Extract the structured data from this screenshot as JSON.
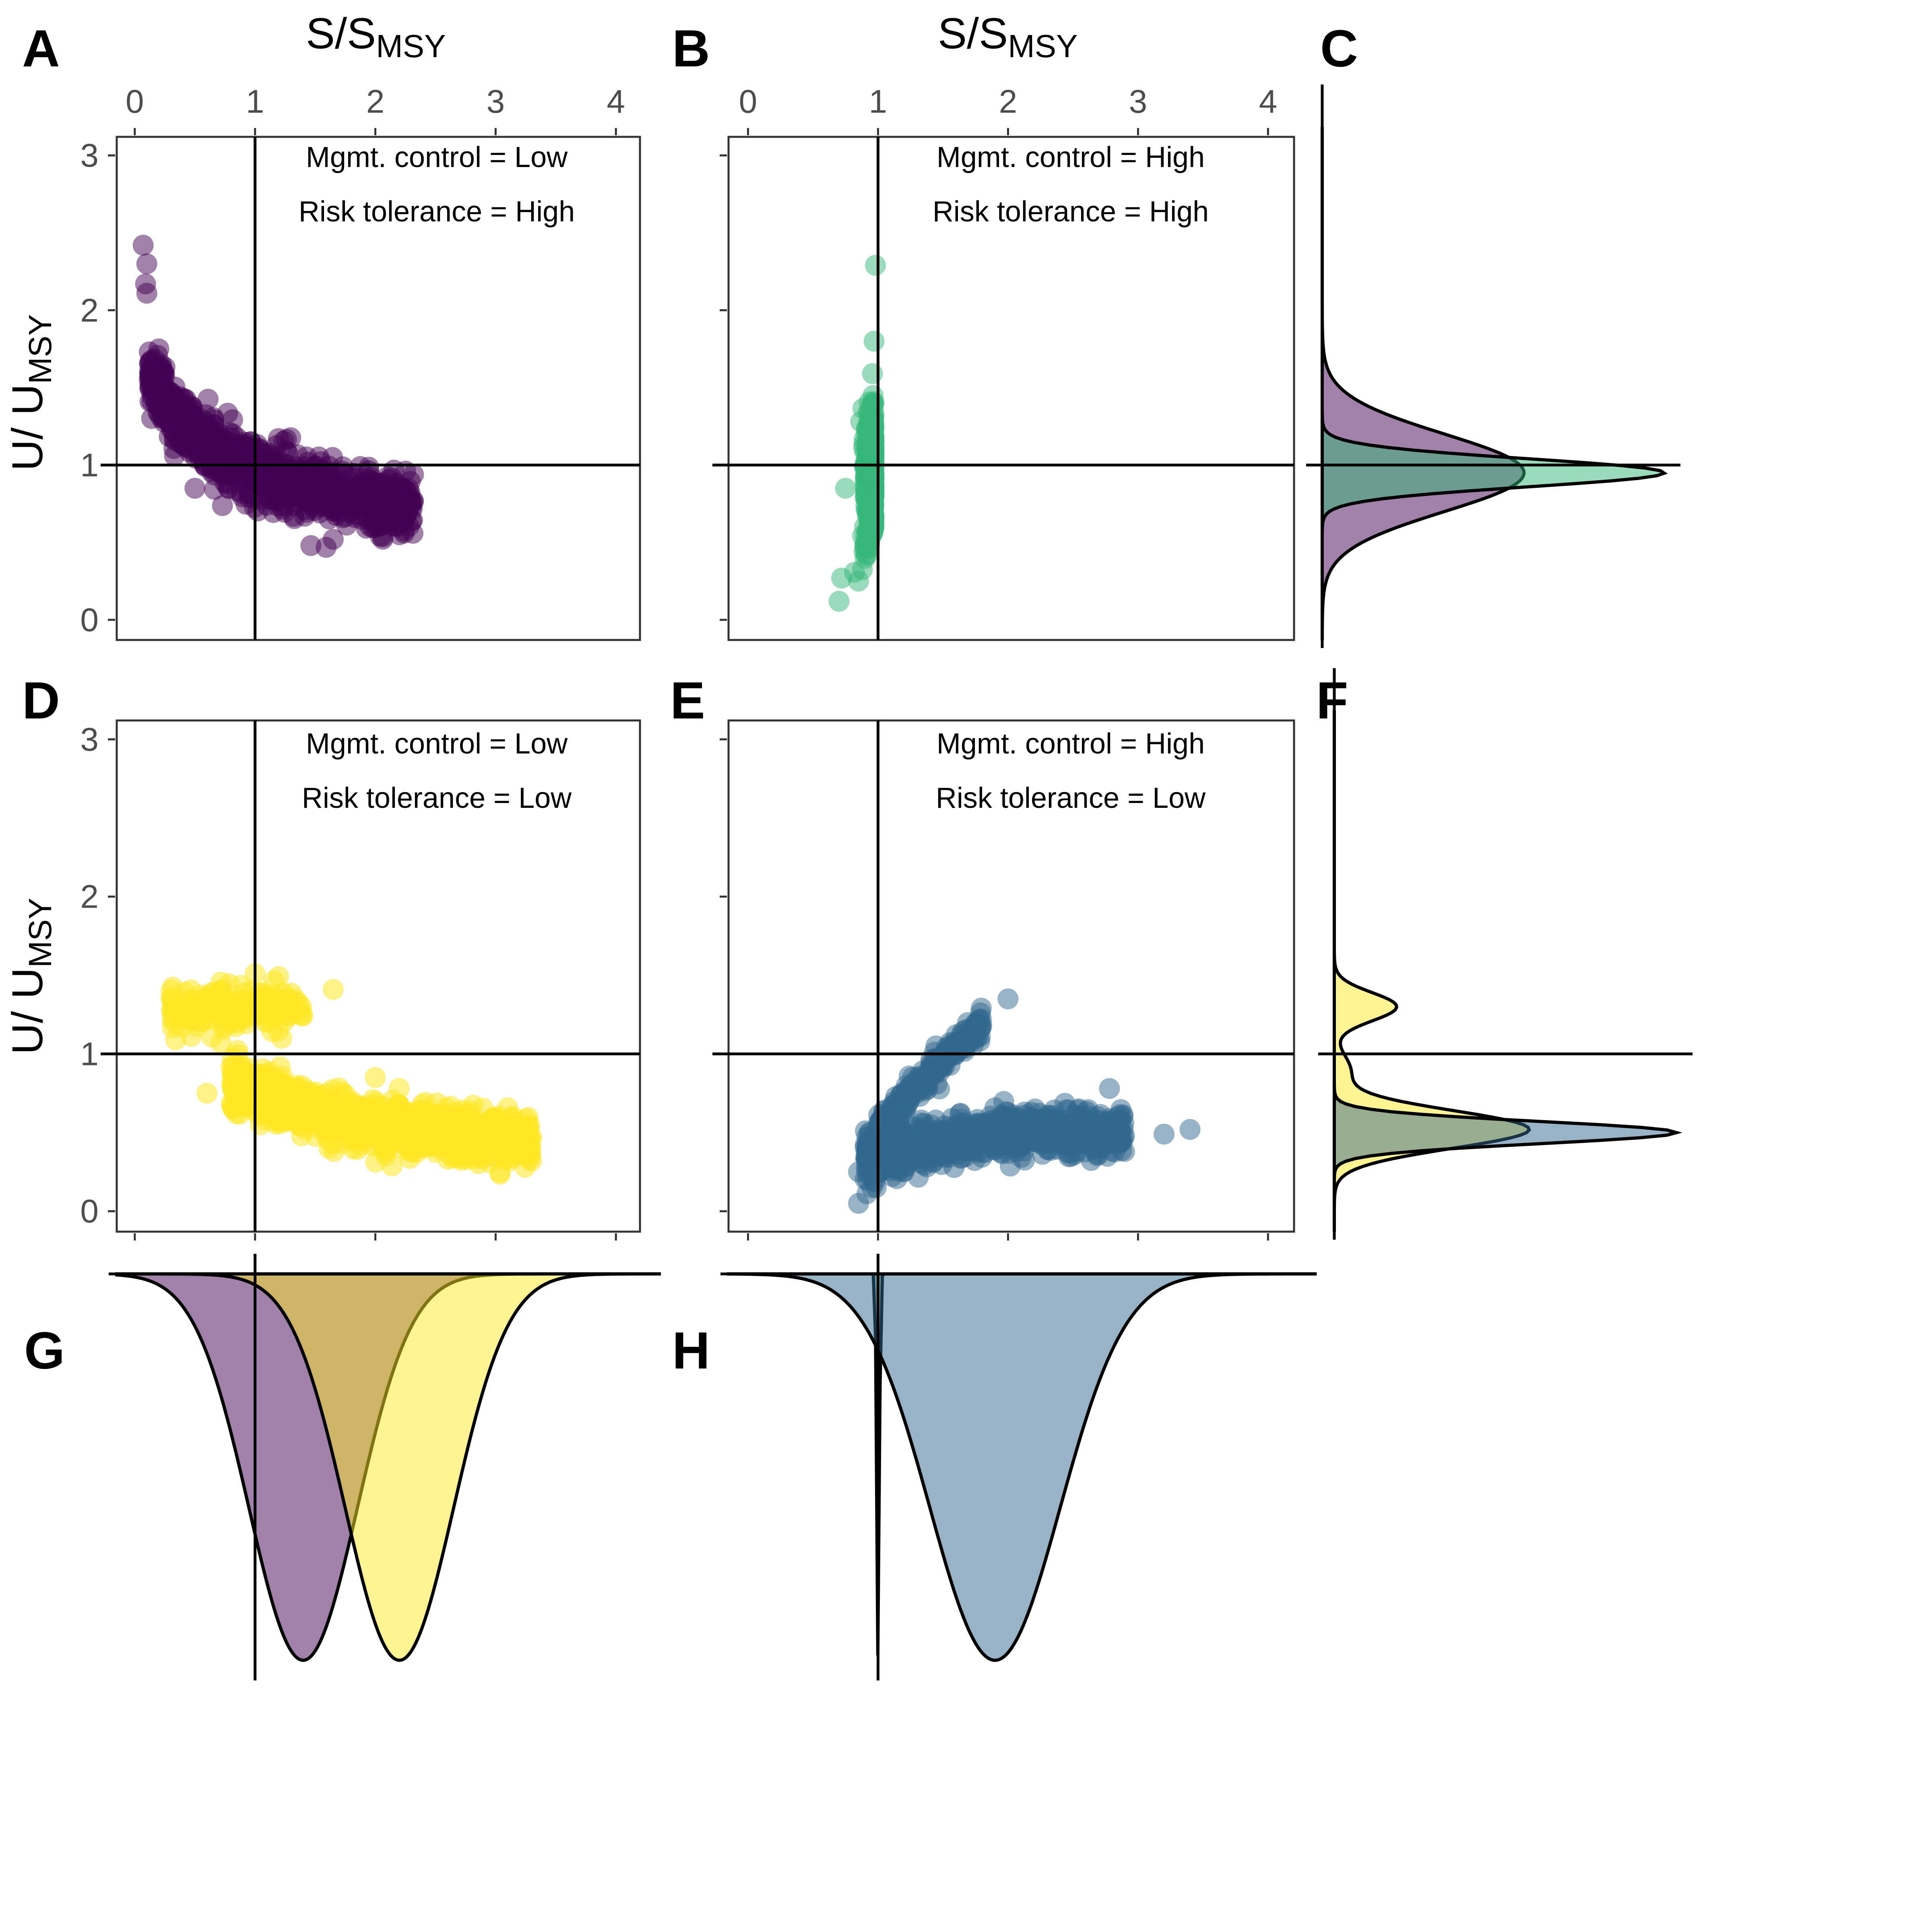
{
  "labels": {
    "A": "A",
    "B": "B",
    "C": "C",
    "D": "D",
    "E": "E",
    "F": "F",
    "G": "G",
    "H": "H"
  },
  "axes": {
    "x_title_main": "S/S",
    "x_title_sub": "MSY",
    "y_title_main": "U/ U",
    "y_title_sub": "MSY",
    "x_ticks": [
      "0",
      "1",
      "2",
      "3",
      "4"
    ],
    "y_ticks": [
      "0",
      "1",
      "2",
      "3"
    ],
    "xlim": [
      -0.15,
      4.2
    ],
    "ylim": [
      -0.13,
      3.12
    ]
  },
  "notes": {
    "A_line1": "Mgmt. control = Low",
    "A_line2": "Risk tolerance = High",
    "B_line1": "Mgmt. control = High",
    "B_line2": "Risk tolerance = High",
    "D_line1": "Mgmt. control = Low",
    "D_line2": "Risk tolerance = Low",
    "E_line1": "Mgmt. control = High",
    "E_line2": "Risk tolerance = Low"
  },
  "colors": {
    "lowcontrol_hightol": "#440154",
    "highcontrol_hightol": "#35b779",
    "lowcontrol_lowtol": "#fde725",
    "highcontrol_lowtol": "#31688e"
  },
  "chart_data": [
    {
      "panel": "A",
      "type": "scatter",
      "description_group": "Mgmt. control = Low, Risk tolerance = High",
      "xlabel": "S/SMSY",
      "ylabel": "U/ UMSY",
      "xlim": [
        -0.15,
        4.2
      ],
      "ylim": [
        -0.13,
        3.12
      ],
      "reference_lines": {
        "x": 1,
        "y": 1
      },
      "color": "#440154",
      "cluster": {
        "x_range": [
          0.05,
          2.35
        ],
        "curve": [
          [
            0.1,
            1.6
          ],
          [
            0.3,
            1.35
          ],
          [
            0.6,
            1.15
          ],
          [
            1.0,
            0.95
          ],
          [
            1.5,
            0.85
          ],
          [
            2.0,
            0.75
          ],
          [
            2.3,
            0.75
          ]
        ]
      },
      "points": [
        [
          0.07,
          2.42
        ],
        [
          0.1,
          2.3
        ],
        [
          0.09,
          2.17
        ],
        [
          0.1,
          2.11
        ],
        [
          0.2,
          1.75
        ],
        [
          0.12,
          1.55
        ],
        [
          0.5,
          0.85
        ],
        [
          2.2,
          0.55
        ],
        [
          1.65,
          0.52
        ],
        [
          2.28,
          0.78
        ]
      ]
    },
    {
      "panel": "B",
      "type": "scatter",
      "description_group": "Mgmt. control = High, Risk tolerance = High",
      "xlabel": "S/SMSY",
      "ylabel": "U/ UMSY",
      "xlim": [
        -0.15,
        4.2
      ],
      "ylim": [
        -0.13,
        3.12
      ],
      "reference_lines": {
        "x": 1,
        "y": 1
      },
      "color": "#35b779",
      "cluster": {
        "x_range": [
          0.7,
          1.05
        ],
        "y_range": [
          0.1,
          2.3
        ]
      },
      "points": [
        [
          0.98,
          2.29
        ],
        [
          0.97,
          1.8
        ],
        [
          0.7,
          0.12
        ],
        [
          0.72,
          0.27
        ],
        [
          0.85,
          0.25
        ],
        [
          0.75,
          0.85
        ]
      ]
    },
    {
      "panel": "C",
      "type": "area",
      "description": "Marginal density of U/UMSY for panels A and B (rotated)",
      "series": [
        {
          "name": "Mgmt. control = Low, Risk tolerance = High",
          "color": "#440154",
          "mode": 0.95,
          "sd": 0.25,
          "peak_rel": 0.59
        },
        {
          "name": "Mgmt. control = High, Risk tolerance = High",
          "color": "#35b779",
          "mode": 0.95,
          "sd": 0.09,
          "peak_rel": 1.0
        }
      ],
      "reference_line_y": 1
    },
    {
      "panel": "D",
      "type": "scatter",
      "description_group": "Mgmt. control = Low, Risk tolerance = Low",
      "xlabel": "S/SMSY",
      "ylabel": "U/ UMSY",
      "xlim": [
        -0.15,
        4.2
      ],
      "ylim": [
        -0.13,
        3.12
      ],
      "reference_lines": {
        "x": 1,
        "y": 1
      },
      "color": "#fde725",
      "clusters": [
        {
          "x_range": [
            0.3,
            1.4
          ],
          "y_center": 1.28,
          "spread": 0.1
        },
        {
          "x_range": [
            0.8,
            3.3
          ],
          "curve": [
            [
              0.9,
              0.8
            ],
            [
              1.5,
              0.62
            ],
            [
              2.2,
              0.52
            ],
            [
              3.2,
              0.45
            ]
          ]
        }
      ],
      "points": [
        [
          1.65,
          1.41
        ],
        [
          0.6,
          0.75
        ],
        [
          3.3,
          0.47
        ],
        [
          2.0,
          0.85
        ]
      ]
    },
    {
      "panel": "E",
      "type": "scatter",
      "description_group": "Mgmt. control = High, Risk tolerance = Low",
      "xlabel": "S/SMSY",
      "ylabel": "U/ UMSY",
      "xlim": [
        -0.15,
        4.2
      ],
      "ylim": [
        -0.13,
        3.12
      ],
      "reference_lines": {
        "x": 1,
        "y": 1
      },
      "color": "#31688e",
      "clusters": [
        {
          "x_range": [
            0.9,
            2.9
          ],
          "curve": [
            [
              1.0,
              0.35
            ],
            [
              1.5,
              0.45
            ],
            [
              2.0,
              0.5
            ],
            [
              2.8,
              0.5
            ]
          ]
        },
        {
          "x_range": [
            1.0,
            1.8
          ],
          "curve": [
            [
              1.0,
              0.5
            ],
            [
              1.3,
              0.8
            ],
            [
              1.6,
              1.05
            ],
            [
              1.8,
              1.18
            ]
          ]
        }
      ],
      "points": [
        [
          2.0,
          1.35
        ],
        [
          0.85,
          0.05
        ],
        [
          0.85,
          0.25
        ],
        [
          3.4,
          0.52
        ],
        [
          3.2,
          0.49
        ],
        [
          2.78,
          0.78
        ]
      ]
    },
    {
      "panel": "F",
      "type": "area",
      "description": "Marginal density of U/UMSY for panels D and E (rotated)",
      "series": [
        {
          "name": "Mgmt. control = Low, Risk tolerance = Low",
          "color": "#fde725",
          "mode": 0.52,
          "sd": 0.12,
          "peak_rel": 0.57,
          "second_mode": 1.3
        },
        {
          "name": "Mgmt. control = High, Risk tolerance = Low",
          "color": "#31688e",
          "mode": 0.5,
          "sd": 0.07,
          "peak_rel": 1.0
        }
      ],
      "reference_line_y": 1
    },
    {
      "panel": "G",
      "type": "area",
      "description": "Marginal density of S/SMSY for panels A and D (inverted)",
      "series": [
        {
          "name": "Mgmt. control = Low, Risk tolerance = High",
          "color": "#440154",
          "mode": 1.4,
          "sd": 0.45
        },
        {
          "name": "Mgmt. control = Low, Risk tolerance = Low",
          "color": "#fde725",
          "mode": 2.2,
          "sd": 0.45
        }
      ],
      "reference_line_x": 1
    },
    {
      "panel": "H",
      "type": "area",
      "description": "Marginal density of S/SMSY for panels B and E (inverted)",
      "series": [
        {
          "name": "Mgmt. control = High, Risk tolerance = High",
          "color": "#35b779",
          "mode": 1.0,
          "sd": 0.01
        },
        {
          "name": "Mgmt. control = High, Risk tolerance = Low",
          "color": "#31688e",
          "mode": 1.9,
          "sd": 0.5
        }
      ],
      "reference_line_x": 1
    }
  ]
}
